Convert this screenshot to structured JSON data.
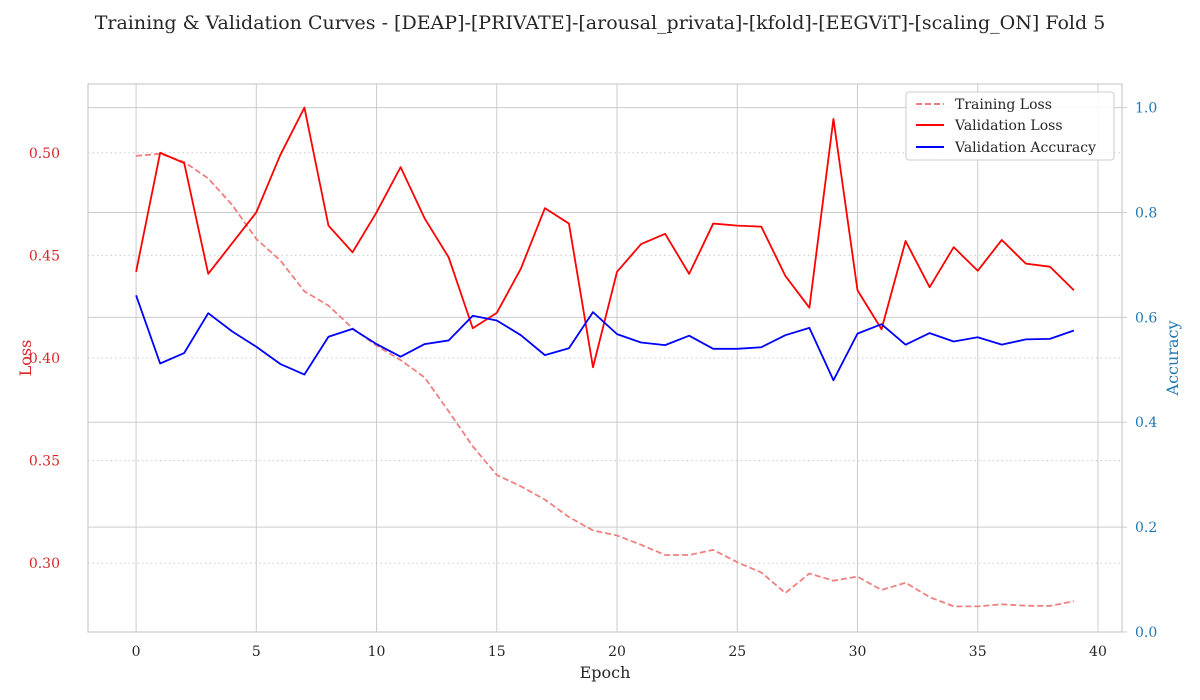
{
  "chart_data": {
    "type": "line",
    "title": "Training & Validation Curves - [DEAP]-[PRIVATE]-[arousal_privata]-[kfold]-[EEGViT]-[scaling_ON] Fold 5",
    "xlabel": "Epoch",
    "ylabel_left": "Loss",
    "ylabel_right": "Accuracy",
    "x": [
      0,
      1,
      2,
      3,
      4,
      5,
      6,
      7,
      8,
      9,
      10,
      11,
      12,
      13,
      14,
      15,
      16,
      17,
      18,
      19,
      20,
      21,
      22,
      23,
      24,
      25,
      26,
      27,
      28,
      29,
      30,
      31,
      32,
      33,
      34,
      35,
      36,
      37,
      38,
      39
    ],
    "xlim": [
      -2,
      41
    ],
    "ylim_left": [
      0.2665,
      0.5335
    ],
    "ylim_right": [
      0,
      1.045
    ],
    "xticks": [
      0,
      5,
      10,
      15,
      20,
      25,
      30,
      35,
      40
    ],
    "xtick_labels": [
      "0",
      "5",
      "10",
      "15",
      "20",
      "25",
      "30",
      "35",
      "40"
    ],
    "yticks_left": [
      0.3,
      0.35,
      0.4,
      0.45,
      0.5
    ],
    "ytick_labels_left": [
      "0.30",
      "0.35",
      "0.40",
      "0.45",
      "0.50"
    ],
    "yticks_right": [
      0.0,
      0.2,
      0.4,
      0.6,
      0.8,
      1.0
    ],
    "ytick_labels_right": [
      "0.0",
      "0.2",
      "0.4",
      "0.6",
      "0.8",
      "1.0"
    ],
    "legend_position": "top-right",
    "colors": {
      "training_loss": "#f08080",
      "validation_loss": "#ff0000",
      "validation_accuracy": "#0000ff",
      "left_axis": "#d62728",
      "right_axis": "#1f77b4"
    },
    "series": [
      {
        "name": "Training Loss",
        "axis": "left",
        "style": "dashed",
        "values": [
          0.4985,
          0.4995,
          0.4955,
          0.4875,
          0.4745,
          0.458,
          0.4475,
          0.4325,
          0.4255,
          0.4145,
          0.406,
          0.399,
          0.3905,
          0.374,
          0.357,
          0.343,
          0.3375,
          0.331,
          0.3225,
          0.316,
          0.3135,
          0.309,
          0.304,
          0.304,
          0.3065,
          0.3005,
          0.2955,
          0.2855,
          0.295,
          0.2915,
          0.2935,
          0.287,
          0.2905,
          0.2835,
          0.279,
          0.279,
          0.28,
          0.2793,
          0.2792,
          0.2815
        ]
      },
      {
        "name": "Validation Loss",
        "axis": "left",
        "style": "solid",
        "values": [
          0.442,
          0.5,
          0.495,
          0.441,
          0.456,
          0.471,
          0.499,
          0.522,
          0.4645,
          0.4515,
          0.471,
          0.493,
          0.468,
          0.449,
          0.4145,
          0.422,
          0.4435,
          0.473,
          0.4655,
          0.3955,
          0.442,
          0.4555,
          0.4605,
          0.441,
          0.4655,
          0.4645,
          0.464,
          0.44,
          0.4245,
          0.5165,
          0.433,
          0.414,
          0.457,
          0.4345,
          0.454,
          0.4425,
          0.4575,
          0.446,
          0.4445,
          0.433
        ]
      },
      {
        "name": "Validation Accuracy",
        "axis": "right",
        "style": "solid",
        "values": [
          0.642,
          0.512,
          0.532,
          0.608,
          0.573,
          0.544,
          0.511,
          0.491,
          0.563,
          0.578,
          0.549,
          0.525,
          0.549,
          0.556,
          0.603,
          0.594,
          0.566,
          0.528,
          0.541,
          0.61,
          0.568,
          0.552,
          0.547,
          0.565,
          0.54,
          0.54,
          0.543,
          0.566,
          0.58,
          0.48,
          0.569,
          0.587,
          0.548,
          0.57,
          0.554,
          0.562,
          0.548,
          0.558,
          0.559,
          0.575
        ]
      }
    ]
  }
}
